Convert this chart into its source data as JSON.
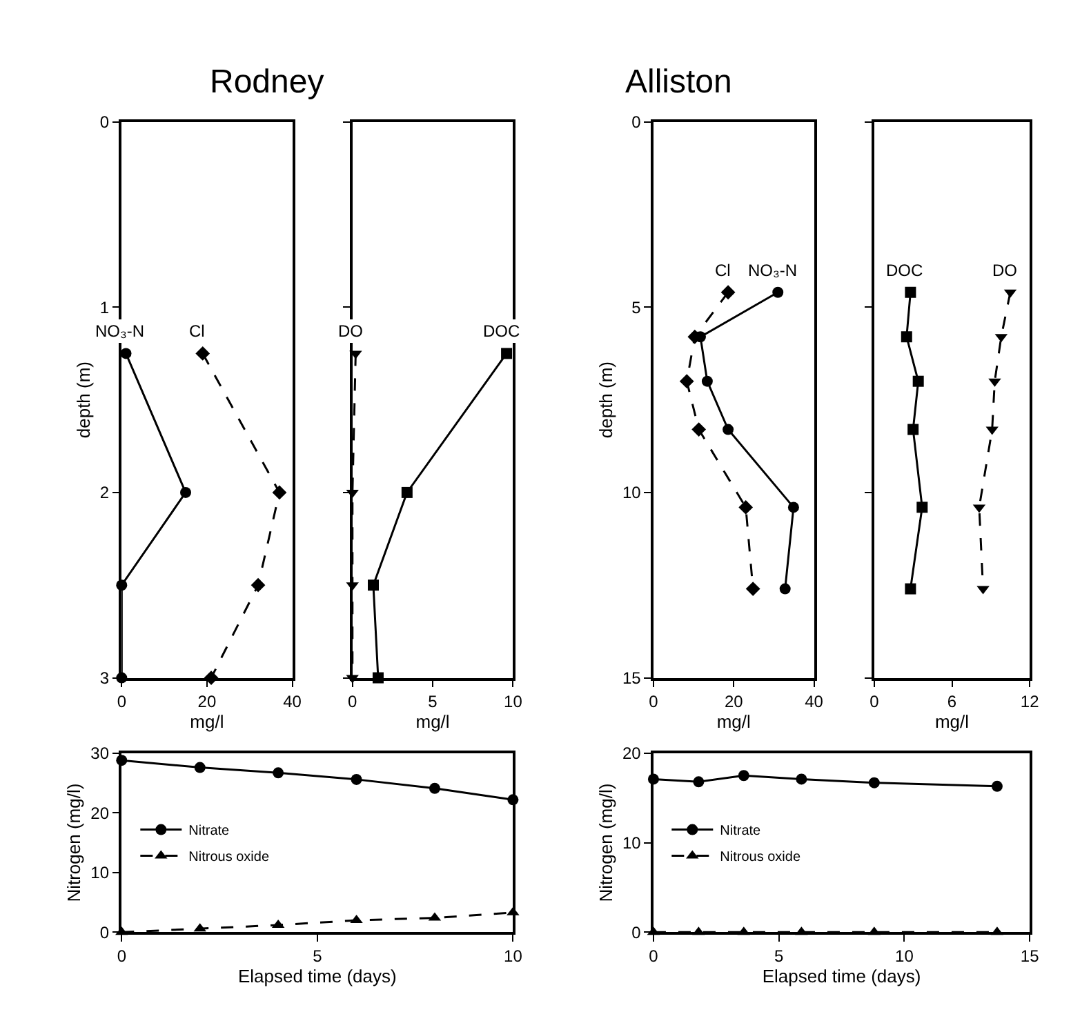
{
  "chart_data": [
    {
      "type": "line",
      "title": "Rodney",
      "xlabel": "mg/l",
      "ylabel": "depth (m)",
      "xlim": [
        0,
        40
      ],
      "xticks": [
        0,
        20,
        40
      ],
      "ylim": [
        3,
        0
      ],
      "yticks": [
        0,
        1,
        2,
        3
      ],
      "legend": false,
      "series": [
        {
          "name": "NO₃-N",
          "color": "#000000",
          "marker": "circle",
          "line_style": "solid",
          "x": [
            1,
            15,
            0,
            0
          ],
          "values": [
            1.25,
            2,
            2.5,
            3
          ]
        },
        {
          "name": "Cl",
          "color": "#000000",
          "marker": "diamond",
          "line_style": "dashed",
          "x": [
            19,
            37,
            32,
            21
          ],
          "values": [
            1.25,
            2,
            2.5,
            3
          ]
        }
      ]
    },
    {
      "type": "line",
      "xlabel": "mg/l",
      "xlim": [
        0,
        10
      ],
      "xticks": [
        0,
        5,
        10
      ],
      "ylim": [
        3,
        0
      ],
      "yticks": [
        0,
        1,
        2,
        3
      ],
      "tick_labels": "x",
      "legend": false,
      "series": [
        {
          "name": "DO",
          "color": "#000000",
          "marker": "triangle",
          "line_style": "dashed",
          "x": [
            0.2,
            0,
            0,
            0
          ],
          "values": [
            1.25,
            2,
            2.5,
            3
          ]
        },
        {
          "name": "DOC",
          "color": "#000000",
          "marker": "square",
          "line_style": "solid",
          "x": [
            9.6,
            3.4,
            1.3,
            1.6
          ],
          "values": [
            1.25,
            2,
            2.5,
            3
          ]
        }
      ]
    },
    {
      "type": "line",
      "title": "Alliston",
      "xlabel": "mg/l",
      "ylabel": "depth (m)",
      "xlim": [
        0,
        40
      ],
      "xticks": [
        0,
        20,
        40
      ],
      "ylim": [
        15,
        0
      ],
      "yticks": [
        0,
        5,
        10,
        15
      ],
      "legend": false,
      "series": [
        {
          "name": "NO₃-N",
          "color": "#000000",
          "marker": "circle",
          "line_style": "solid",
          "x": [
            31,
            11.7,
            13.4,
            18.6,
            34.9,
            32.8
          ],
          "values": [
            4.6,
            5.8,
            7,
            8.3,
            10.4,
            12.6
          ]
        },
        {
          "name": "Cl",
          "color": "#000000",
          "marker": "diamond",
          "line_style": "dashed",
          "x": [
            18.6,
            10.3,
            8.3,
            11.3,
            23,
            24.8
          ],
          "values": [
            4.6,
            5.8,
            7,
            8.3,
            10.4,
            12.6
          ]
        }
      ]
    },
    {
      "type": "line",
      "xlabel": "mg/l",
      "xlim": [
        0,
        12
      ],
      "xticks": [
        0,
        6,
        12
      ],
      "ylim": [
        15,
        0
      ],
      "yticks": [
        0,
        5,
        10,
        15
      ],
      "tick_labels": "x",
      "legend": false,
      "series": [
        {
          "name": "DOC",
          "color": "#000000",
          "marker": "square",
          "line_style": "solid",
          "x": [
            2.8,
            2.5,
            3.4,
            3,
            3.7,
            2.8
          ],
          "values": [
            4.6,
            5.8,
            7,
            8.3,
            10.4,
            12.6
          ]
        },
        {
          "name": "DO",
          "color": "#000000",
          "marker": "triangle",
          "line_style": "dashed",
          "x": [
            10.5,
            9.8,
            9.3,
            9.1,
            8.1,
            8.4
          ],
          "values": [
            4.6,
            5.8,
            7,
            8.3,
            10.4,
            12.6
          ]
        }
      ]
    },
    {
      "type": "line",
      "xlabel": "Elapsed time (days)",
      "ylabel": "Nitrogen (mg/l)",
      "xlim": [
        0,
        10
      ],
      "xticks": [
        0,
        5,
        10
      ],
      "ylim": [
        0,
        30
      ],
      "yticks": [
        0,
        10,
        20,
        30
      ],
      "legend": "left",
      "series": [
        {
          "name": "Nitrate",
          "color": "#000000",
          "marker": "circle",
          "line_style": "solid",
          "x": [
            0,
            2,
            4,
            6,
            8,
            10
          ],
          "values": [
            28.8,
            27.6,
            26.7,
            25.6,
            24.1,
            22.2
          ]
        },
        {
          "name": "Nitrous oxide",
          "color": "#000000",
          "marker": "triangle",
          "line_style": "dashed",
          "x": [
            0,
            2,
            4,
            6,
            8,
            10
          ],
          "values": [
            0,
            0.6,
            1.2,
            2,
            2.4,
            3.3
          ]
        }
      ]
    },
    {
      "type": "line",
      "xlabel": "Elapsed time (days)",
      "ylabel": "Nitrogen (mg/l)",
      "xlim": [
        0,
        15
      ],
      "xticks": [
        0,
        5,
        10,
        15
      ],
      "ylim": [
        0,
        20
      ],
      "yticks": [
        0,
        10,
        20
      ],
      "legend": "left",
      "series": [
        {
          "name": "Nitrate",
          "color": "#000000",
          "marker": "circle",
          "line_style": "solid",
          "x": [
            0,
            1.8,
            3.6,
            5.9,
            8.8,
            13.7
          ],
          "values": [
            17.1,
            16.8,
            17.5,
            17.1,
            16.7,
            16.3
          ]
        },
        {
          "name": "Nitrous oxide",
          "color": "#000000",
          "marker": "triangle",
          "line_style": "dashed",
          "x": [
            0,
            1.8,
            3.6,
            5.9,
            8.8,
            13.7
          ],
          "values": [
            0,
            0,
            0,
            0,
            0,
            0
          ]
        }
      ]
    }
  ]
}
